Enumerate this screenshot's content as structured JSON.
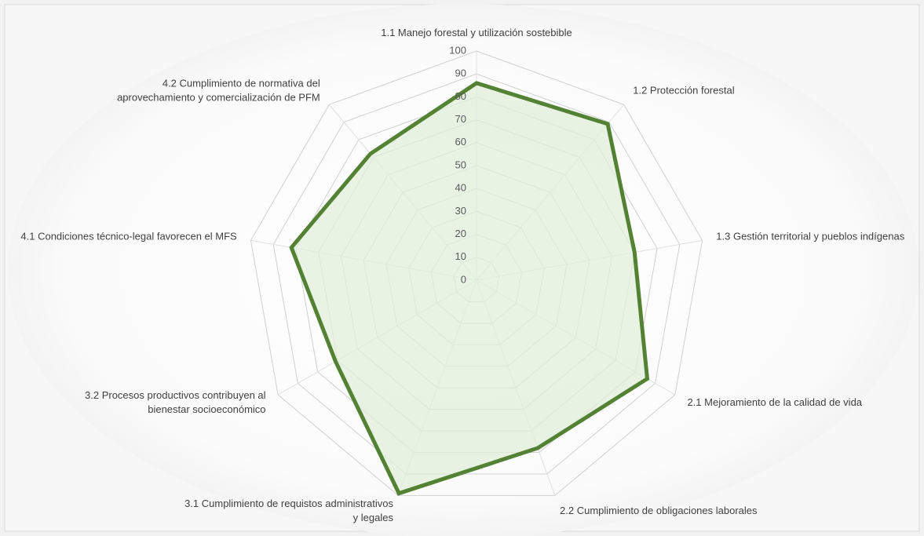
{
  "chart_data": {
    "type": "radar",
    "categories": [
      "1.1 Manejo forestal y utilización sostebible",
      "1.2 Protección forestal",
      "1.3 Gestión territorial y pueblos indígenas",
      "2.1 Mejoramiento de la calidad de vida",
      "2.2 Cumplimiento de obligaciones laborales",
      "3.1 Cumplimiento de requistos administrativos\ny legales",
      "3.2 Procesos productivos contribuyen al\nbienestar socioeconómico",
      "4.1 Condiciones técnico-legal favorecen el MFS",
      "4.2 Cumplimiento de normativa del\naprovechamiento y comercialización de PFM"
    ],
    "values": [
      86,
      89,
      70,
      86,
      78,
      99,
      71,
      82,
      72
    ],
    "color": "#548235",
    "fill": "#e2efda",
    "ylim": [
      0,
      100
    ],
    "yticks": [
      0,
      10,
      20,
      30,
      40,
      50,
      60,
      70,
      80,
      90,
      100
    ],
    "grid": true
  }
}
